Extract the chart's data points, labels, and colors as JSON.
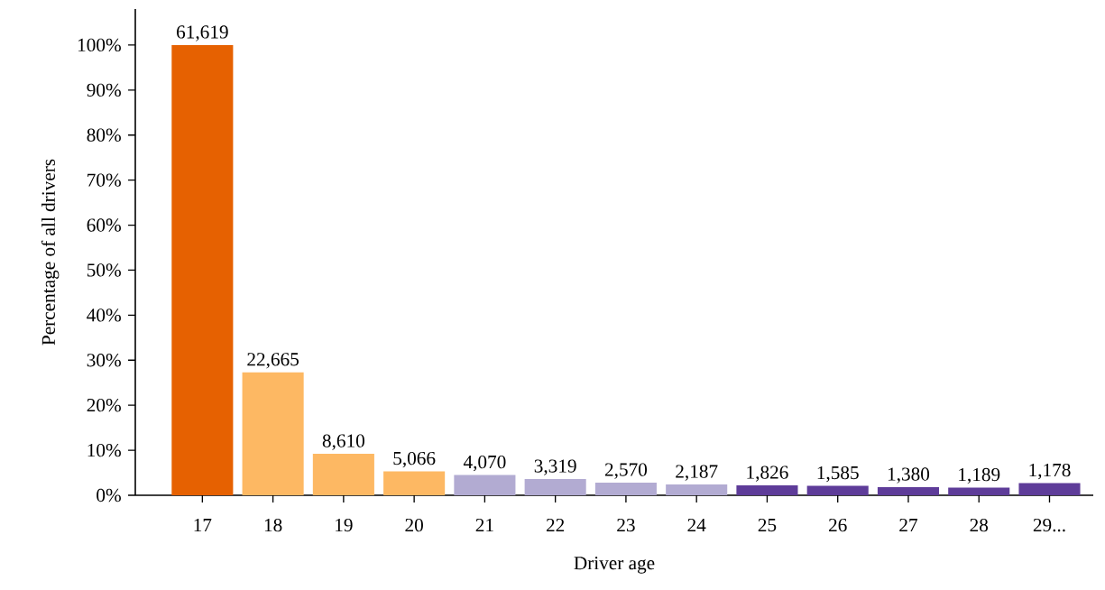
{
  "chart_data": {
    "type": "bar",
    "xlabel": "Driver age",
    "ylabel": "Percentage of all drivers",
    "categories": [
      "17",
      "18",
      "19",
      "20",
      "21",
      "22",
      "23",
      "24",
      "25",
      "26",
      "27",
      "28",
      "29..."
    ],
    "values": [
      100,
      27.3,
      9.2,
      5.3,
      4.5,
      3.6,
      2.8,
      2.4,
      2.2,
      2.1,
      1.8,
      1.7,
      2.7
    ],
    "colors": [
      "#e66101",
      "#fdb863",
      "#fdb863",
      "#fdb863",
      "#b2abd2",
      "#b2abd2",
      "#b2abd2",
      "#b2abd2",
      "#5e3c99",
      "#5e3c99",
      "#5e3c99",
      "#5e3c99",
      "#5e3c99"
    ],
    "annotations": [
      {
        "text": "61,619",
        "x": "17",
        "y": 100
      },
      {
        "text": "22,665",
        "x": "18",
        "y": 27.3
      },
      {
        "text": "8,610",
        "x": "19",
        "y": 9.2
      },
      {
        "text": "5,066",
        "x": "20",
        "y": 5.3
      },
      {
        "text": "4,070",
        "x": "21",
        "y": 4.5
      },
      {
        "text": "3,319",
        "x": "22",
        "y": 3.6
      },
      {
        "text": "2,570",
        "x": "23",
        "y": 2.8
      },
      {
        "text": "2,187",
        "x": "24",
        "y": 2.4
      },
      {
        "text": "1,826",
        "x": "25",
        "y": 2.2
      },
      {
        "text": "1,585",
        "x": "26",
        "y": 2.1
      },
      {
        "text": "1,380",
        "x": "27",
        "y": 1.8
      },
      {
        "text": "1,189",
        "x": "28",
        "y": 1.7
      },
      {
        "text": "1,178",
        "x": "29...",
        "y": 2.7
      }
    ],
    "ylim": [
      0,
      108
    ],
    "yticks": [
      {
        "value": 0,
        "label": "0%"
      },
      {
        "value": 10,
        "label": "10%"
      },
      {
        "value": 20,
        "label": "20%"
      },
      {
        "value": 30,
        "label": "30%"
      },
      {
        "value": 40,
        "label": "40%"
      },
      {
        "value": 50,
        "label": "50%"
      },
      {
        "value": 60,
        "label": "60%"
      },
      {
        "value": 70,
        "label": "70%"
      },
      {
        "value": 80,
        "label": "80%"
      },
      {
        "value": 90,
        "label": "90%"
      },
      {
        "value": 100,
        "label": "100%"
      }
    ]
  }
}
